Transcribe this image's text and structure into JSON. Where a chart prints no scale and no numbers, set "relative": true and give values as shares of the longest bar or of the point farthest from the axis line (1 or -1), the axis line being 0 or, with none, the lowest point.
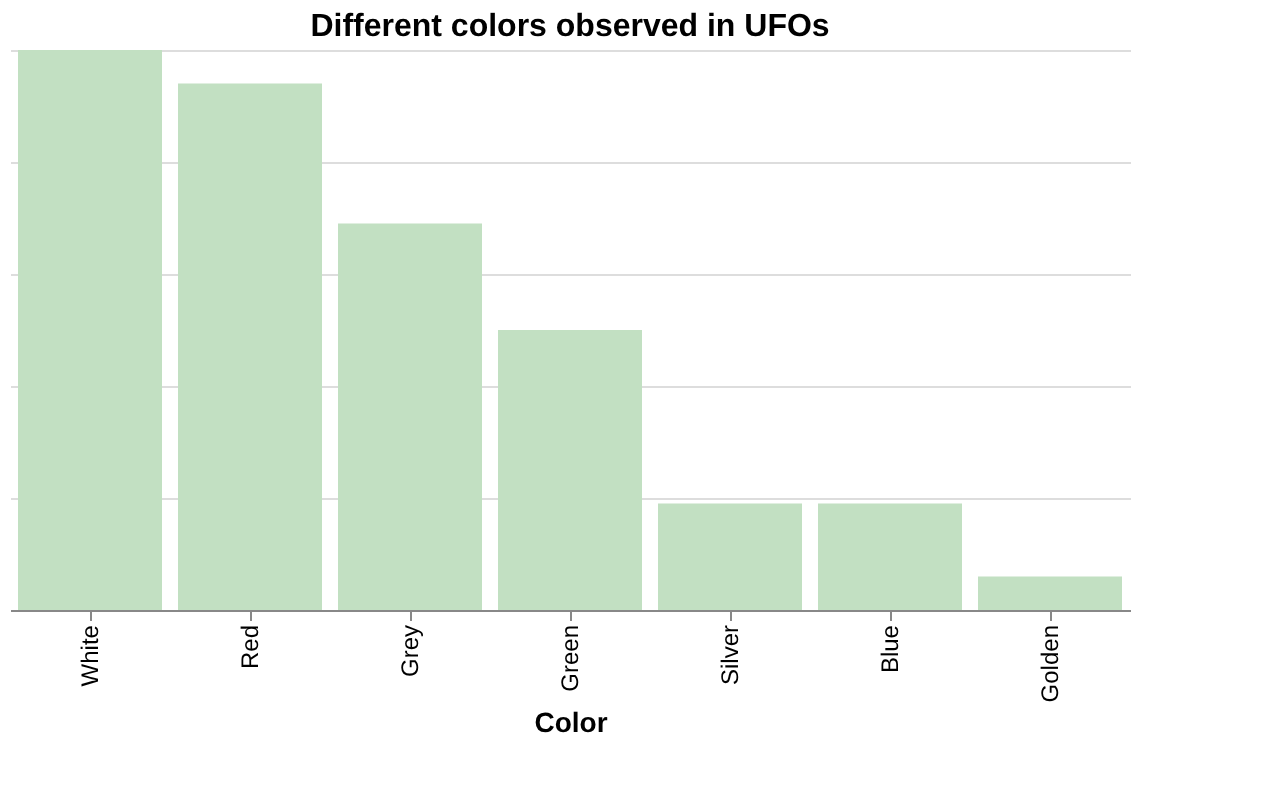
{
  "chart_data": {
    "type": "bar",
    "title": "Different colors observed in UFOs",
    "xlabel": "Color",
    "categories": [
      "White",
      "Red",
      "Grey",
      "Green",
      "Silver",
      "Blue",
      "Golden"
    ],
    "values": [
      1,
      0.94,
      0.69,
      0.5,
      0.19,
      0.19,
      0.06
    ],
    "color": "#c2e0c2",
    "relative": true,
    "grid": "y"
  }
}
